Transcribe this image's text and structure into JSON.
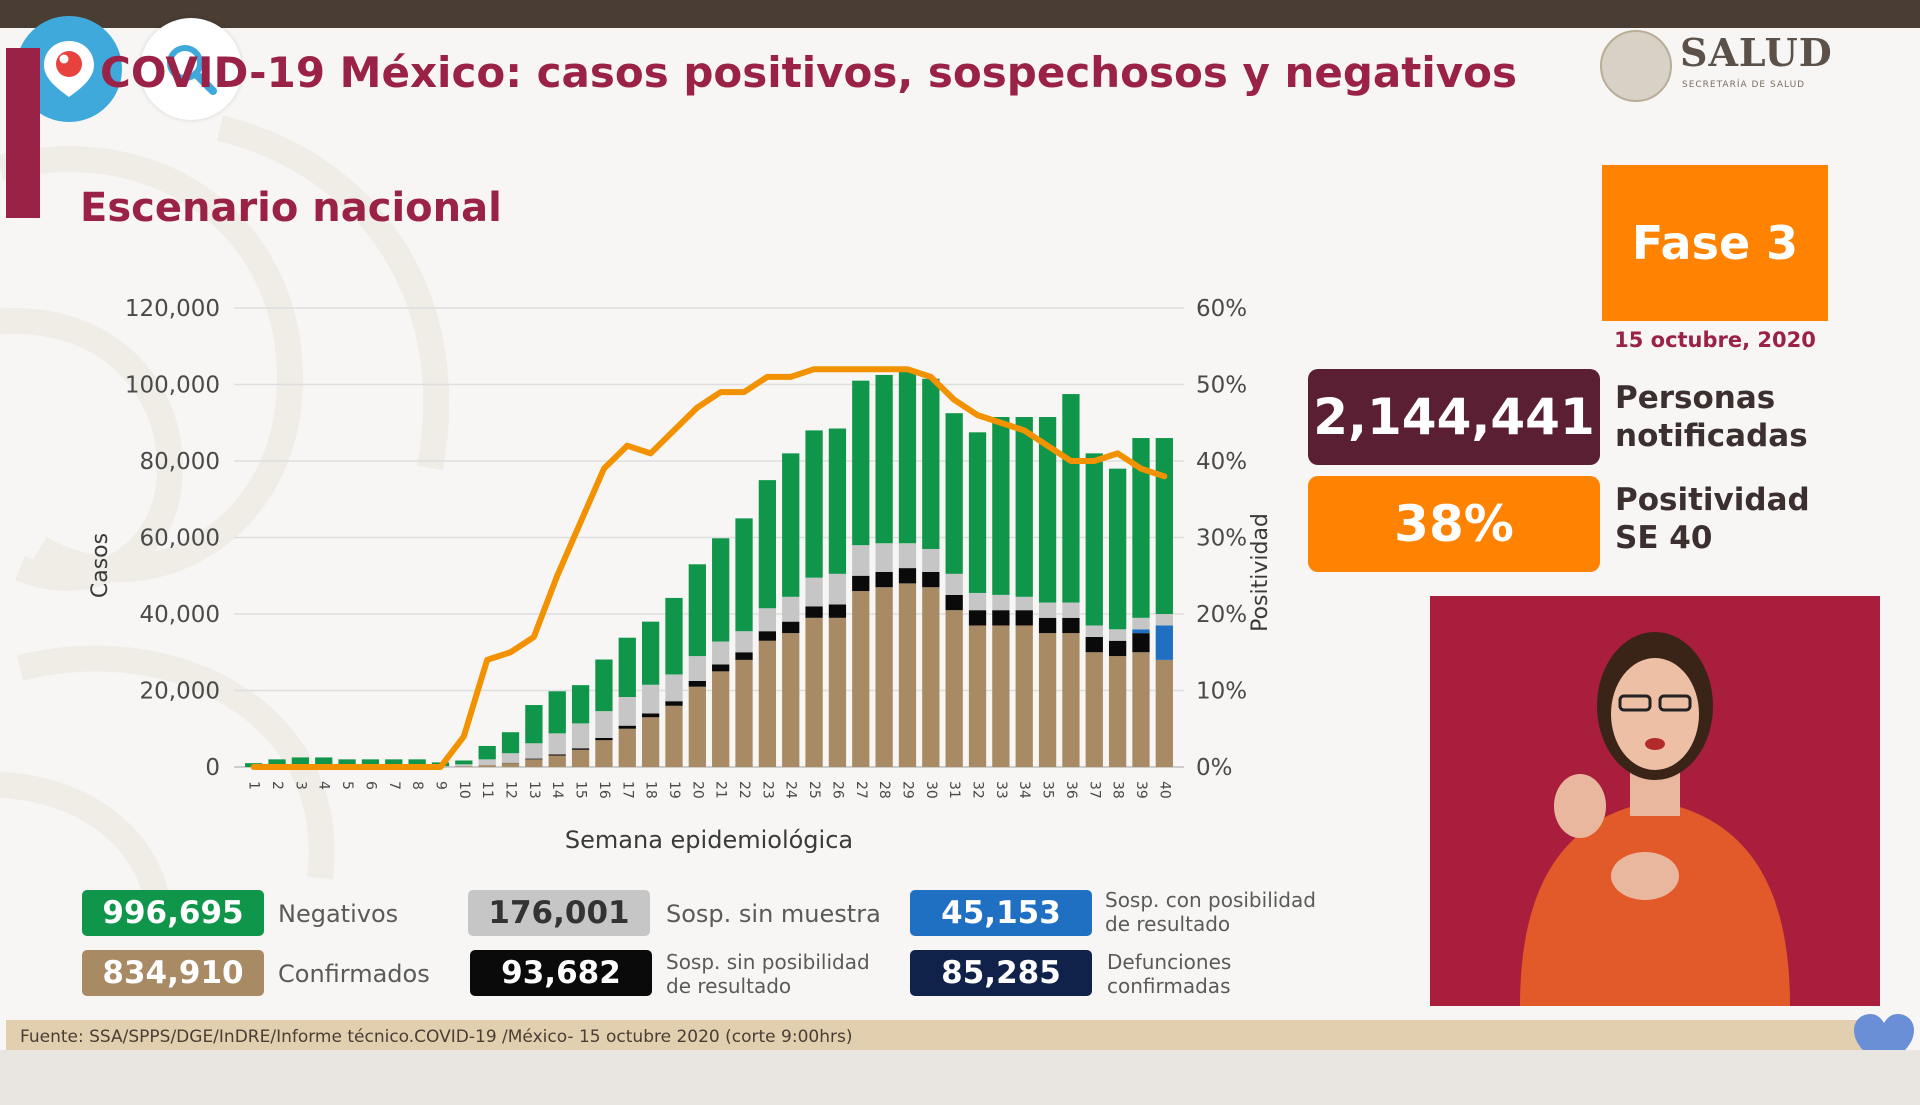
{
  "header": {
    "title": "COVID-19 México: casos positivos, sospechosos y negativos",
    "subtitle": "Escenario nacional"
  },
  "logo": {
    "name": "SALUD",
    "sub": "SECRETARÍA DE SALUD"
  },
  "fase": {
    "label": "Fase 3",
    "date": "15 octubre, 2020"
  },
  "kpis": [
    {
      "value": "2,144,441",
      "label_line1": "Personas",
      "label_line2": "notificadas",
      "color": "#5b1f33"
    },
    {
      "value": "38%",
      "label_line1": "Positividad",
      "label_line2": "SE 40",
      "color": "#ff8200"
    }
  ],
  "legend": [
    {
      "value": "996,695",
      "label1": "Negativos",
      "label2": "",
      "color": "#10964a",
      "text_color": "#ffffff"
    },
    {
      "value": "834,910",
      "label1": "Confirmados",
      "label2": "",
      "color": "#a88b64",
      "text_color": "#ffffff"
    },
    {
      "value": "176,001",
      "label1": "Sosp. sin muestra",
      "label2": "",
      "color": "#c6c6c6",
      "text_color": "#333333"
    },
    {
      "value": "93,682",
      "label1": "Sosp. sin posibilidad",
      "label2": "de resultado",
      "color": "#0a0a0a",
      "text_color": "#ffffff"
    },
    {
      "value": "45,153",
      "label1": "Sosp. con posibilidad",
      "label2": "de resultado",
      "color": "#1f6fc3",
      "text_color": "#ffffff"
    },
    {
      "value": "85,285",
      "label1": "Defunciones",
      "label2": "confirmadas",
      "color": "#10214a",
      "text_color": "#ffffff"
    }
  ],
  "source": "Fuente: SSA/SPPS/DGE/InDRE/Informe técnico.COVID-19 /México- 15 octubre 2020 (corte 9:00hrs)",
  "icons": {
    "periscope": "periscope-icon",
    "search": "search-icon",
    "heart": "heart-icon"
  },
  "chart_data": {
    "type": "bar",
    "stacked": true,
    "xlabel": "Semana epidemiológica",
    "ylabel": "Casos",
    "y2label": "Positividad",
    "ylim": [
      0,
      120000
    ],
    "y_ticks": [
      "0",
      "20,000",
      "40,000",
      "60,000",
      "80,000",
      "100,000",
      "120,000"
    ],
    "y2lim": [
      0,
      60
    ],
    "y2_ticks": [
      "0%",
      "10%",
      "20%",
      "30%",
      "40%",
      "50%",
      "60%"
    ],
    "grid": true,
    "categories": [
      "1",
      "2",
      "3",
      "4",
      "5",
      "6",
      "7",
      "8",
      "9",
      "10",
      "11",
      "12",
      "13",
      "14",
      "15",
      "16",
      "17",
      "18",
      "19",
      "20",
      "21",
      "22",
      "23",
      "24",
      "25",
      "26",
      "27",
      "28",
      "29",
      "30",
      "31",
      "32",
      "33",
      "34",
      "35",
      "36",
      "37",
      "38",
      "39",
      "40"
    ],
    "series": [
      {
        "name": "Confirmados",
        "color": "#a88b64",
        "values": [
          0,
          0,
          0,
          0,
          0,
          0,
          0,
          0,
          10,
          200,
          500,
          1000,
          2000,
          3000,
          4500,
          7000,
          10000,
          13000,
          16000,
          21000,
          25000,
          28000,
          33000,
          35000,
          39000,
          39000,
          46000,
          47000,
          48000,
          47000,
          41000,
          37000,
          37000,
          37000,
          35000,
          35000,
          30000,
          29000,
          30000,
          28000
        ]
      },
      {
        "name": "Sosp. sin posibilidad de resultado",
        "color": "#0a0a0a",
        "values": [
          0,
          0,
          0,
          0,
          0,
          0,
          0,
          0,
          0,
          0,
          0,
          100,
          200,
          300,
          400,
          600,
          800,
          1000,
          1200,
          1500,
          1800,
          2000,
          2500,
          3000,
          3000,
          3500,
          4000,
          4000,
          4000,
          4000,
          4000,
          4000,
          4000,
          4000,
          4000,
          4000,
          4000,
          4000,
          5000,
          0
        ]
      },
      {
        "name": "Sosp. con posibilidad de resultado",
        "color": "#1f6fc3",
        "values": [
          0,
          0,
          0,
          0,
          0,
          0,
          0,
          0,
          0,
          0,
          0,
          0,
          0,
          0,
          0,
          0,
          0,
          0,
          0,
          0,
          0,
          0,
          0,
          0,
          0,
          0,
          0,
          0,
          0,
          0,
          0,
          0,
          0,
          0,
          0,
          0,
          0,
          0,
          1000,
          9000
        ]
      },
      {
        "name": "Sosp. sin muestra",
        "color": "#c6c6c6",
        "values": [
          0,
          0,
          0,
          0,
          0,
          0,
          0,
          0,
          200,
          500,
          1500,
          2500,
          4000,
          5500,
          6500,
          7000,
          7500,
          7500,
          7000,
          6500,
          6000,
          5500,
          6000,
          6500,
          7500,
          8000,
          8000,
          7500,
          6500,
          6000,
          5500,
          4500,
          4000,
          3500,
          4000,
          4000,
          3000,
          3000,
          3000,
          3000
        ]
      },
      {
        "name": "Negativos",
        "color": "#10964a",
        "values": [
          1000,
          2000,
          2500,
          2500,
          2000,
          2000,
          2000,
          2000,
          1000,
          1000,
          3500,
          5500,
          10000,
          11000,
          10000,
          13500,
          15500,
          16500,
          20000,
          24000,
          27000,
          29500,
          33500,
          37500,
          38500,
          38000,
          43000,
          44000,
          45500,
          44500,
          42000,
          42000,
          46500,
          47000,
          48500,
          54500,
          45000,
          42000,
          47000,
          46000
        ]
      }
    ],
    "positivity_percent": [
      0,
      0,
      0,
      0,
      0,
      0,
      0,
      0,
      0,
      4,
      14,
      15,
      17,
      25,
      32,
      39,
      42,
      41,
      44,
      47,
      49,
      49,
      51,
      51,
      52,
      52,
      52,
      52,
      52,
      51,
      48,
      46,
      45,
      44,
      42,
      40,
      40,
      41,
      39,
      38
    ],
    "positivity_color": "#f39200"
  }
}
